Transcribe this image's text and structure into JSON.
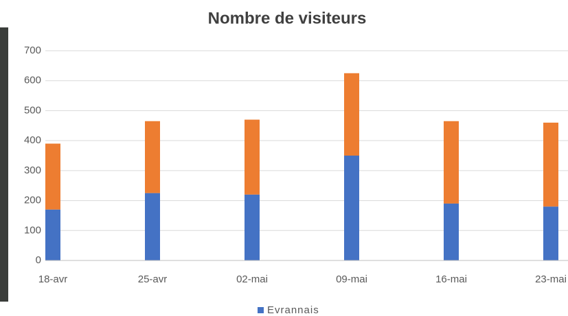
{
  "chart_data": {
    "type": "stacked-bar",
    "title": "Nombre de visiteurs",
    "categories": [
      "18-avr",
      "25-avr",
      "02-mai",
      "09-mai",
      "16-mai",
      "23-mai"
    ],
    "series": [
      {
        "name": "Evrannais",
        "color": "#4472c4",
        "values": [
          170,
          225,
          220,
          350,
          190,
          180
        ]
      },
      {
        "color": "#ed7d31",
        "values": [
          220,
          240,
          250,
          275,
          275,
          280
        ]
      }
    ],
    "ylim": [
      0,
      700
    ],
    "yticks": [
      0,
      100,
      200,
      300,
      400,
      500,
      600,
      700
    ],
    "grid": true,
    "legend": "bottom"
  }
}
